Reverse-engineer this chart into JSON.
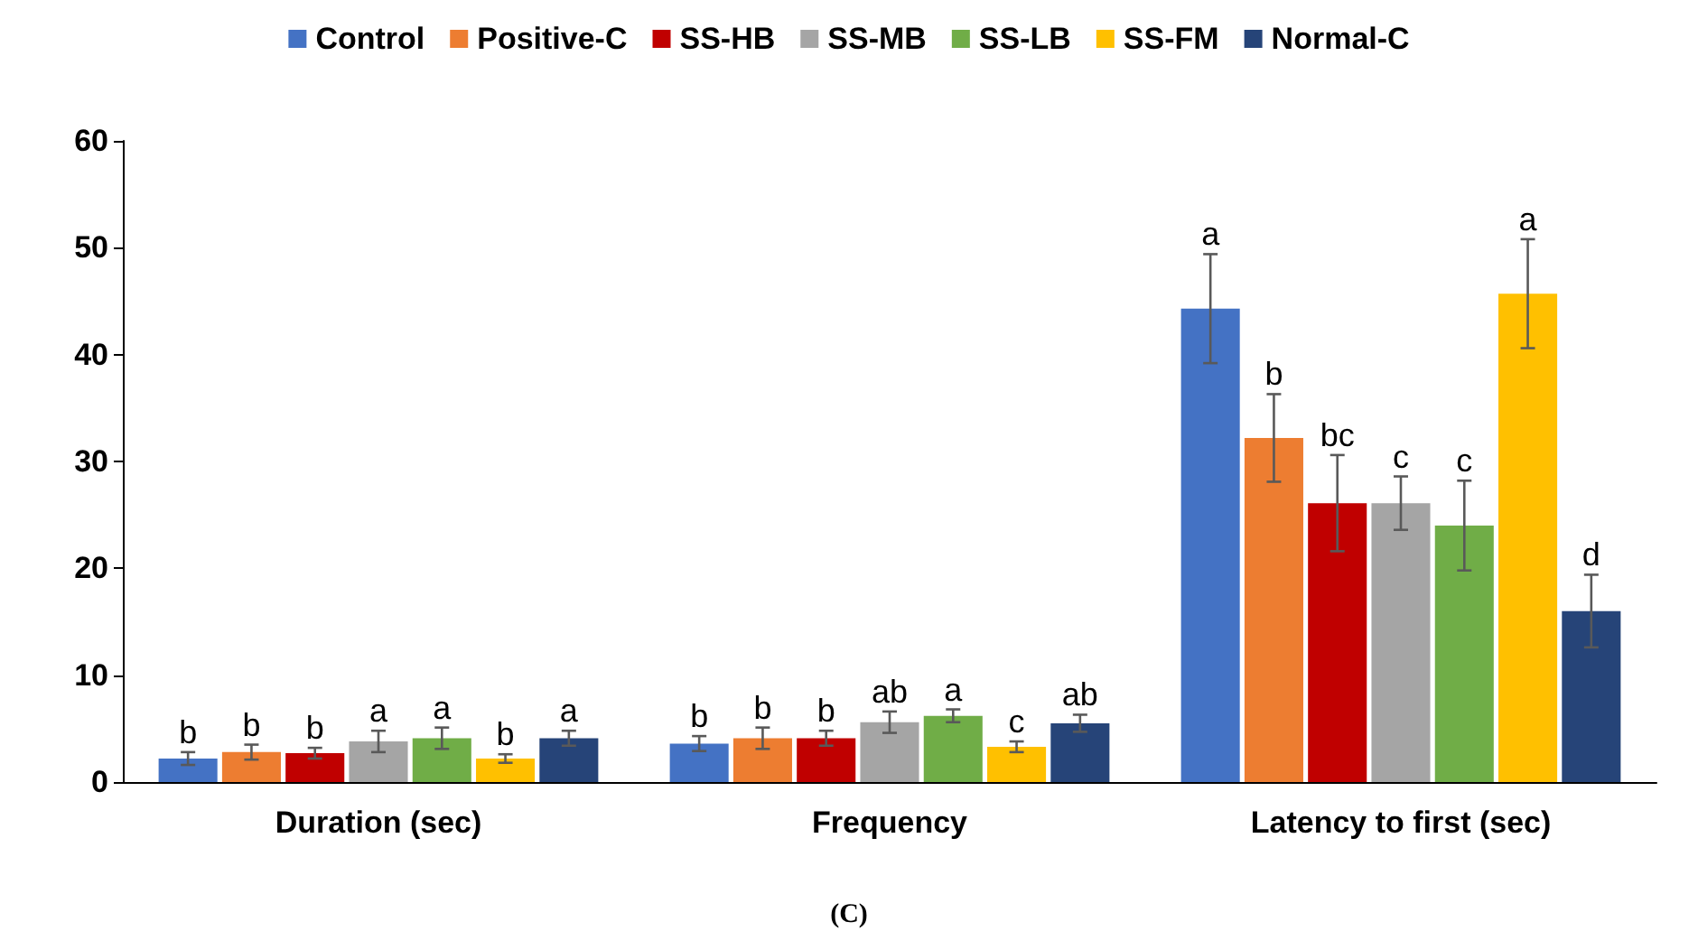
{
  "chart_data": {
    "type": "bar",
    "categories": [
      "Duration (sec)",
      "Frequency",
      "Latency to first (sec)"
    ],
    "ylim": [
      0,
      60
    ],
    "yticks": [
      0,
      10,
      20,
      30,
      40,
      50,
      60
    ],
    "grid": false,
    "legend": "top",
    "annotations": [
      "(C)"
    ],
    "series": [
      {
        "name": "Control",
        "color": "#4472c4",
        "values": [
          2.2,
          3.6,
          44.3
        ],
        "errors": [
          0.6,
          0.7,
          5.1
        ],
        "value_labels": [
          "b",
          "b",
          "a"
        ]
      },
      {
        "name": "Positive-C",
        "color": "#ed7d31",
        "values": [
          2.8,
          4.1,
          32.2
        ],
        "errors": [
          0.7,
          1.0,
          4.1
        ],
        "value_labels": [
          "b",
          "b",
          "b"
        ]
      },
      {
        "name": "SS-HB",
        "color": "#c00000",
        "values": [
          2.7,
          4.1,
          26.1
        ],
        "errors": [
          0.5,
          0.7,
          4.5
        ],
        "value_labels": [
          "b",
          "b",
          "bc"
        ]
      },
      {
        "name": "SS-MB",
        "color": "#a5a5a5",
        "values": [
          3.8,
          5.6,
          26.1
        ],
        "errors": [
          1.0,
          1.0,
          2.5
        ],
        "value_labels": [
          "a",
          "ab",
          "c"
        ]
      },
      {
        "name": "SS-LB",
        "color": "#70ad47",
        "values": [
          4.1,
          6.2,
          24.0
        ],
        "errors": [
          1.0,
          0.6,
          4.2
        ],
        "value_labels": [
          "a",
          "a",
          "c"
        ]
      },
      {
        "name": "SS-FM",
        "color": "#ffc000",
        "values": [
          2.2,
          3.3,
          45.7
        ],
        "errors": [
          0.4,
          0.5,
          5.1
        ],
        "value_labels": [
          "b",
          "c",
          "a"
        ]
      },
      {
        "name": "Normal-C",
        "color": "#264478",
        "values": [
          4.1,
          5.5,
          16.0
        ],
        "errors": [
          0.7,
          0.8,
          3.4
        ],
        "value_labels": [
          "a",
          "ab",
          "d"
        ]
      }
    ]
  }
}
